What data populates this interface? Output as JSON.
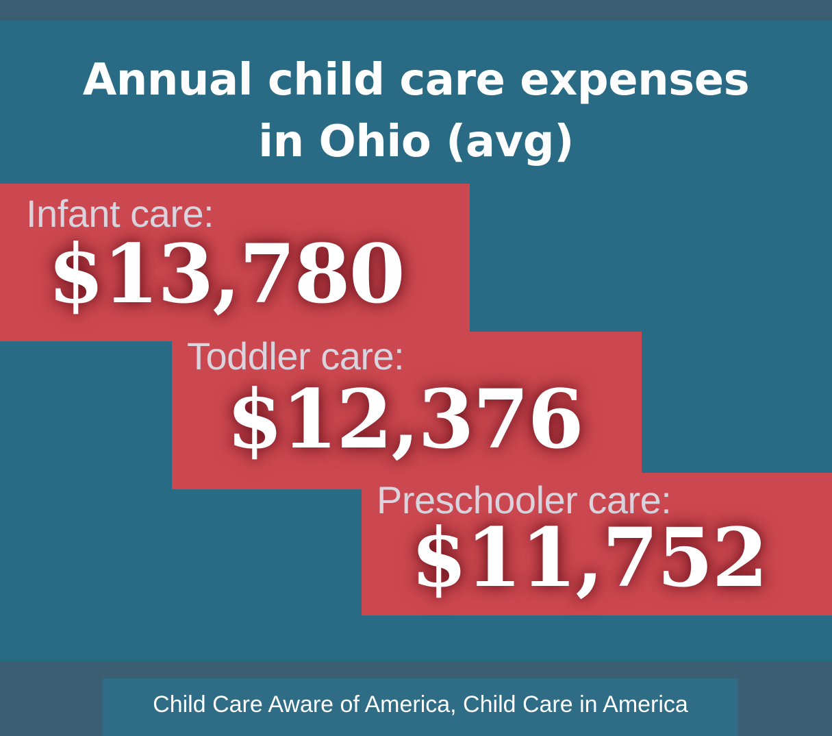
{
  "title": {
    "line1": "Annual child care expenses",
    "line2": "in Ohio (avg)"
  },
  "cards": [
    {
      "label": "Infant care:",
      "value": "$13,780"
    },
    {
      "label": "Toddler care:",
      "value": "$12,376"
    },
    {
      "label": "Preschooler care:",
      "value": "$11,752"
    }
  ],
  "source": "Child Care Aware of America, Child Care in America",
  "colors": {
    "background": "#296a84",
    "card": "#cc4850",
    "label": "#d9d4de",
    "value": "#ffffff",
    "frame": "#3c5e73"
  }
}
